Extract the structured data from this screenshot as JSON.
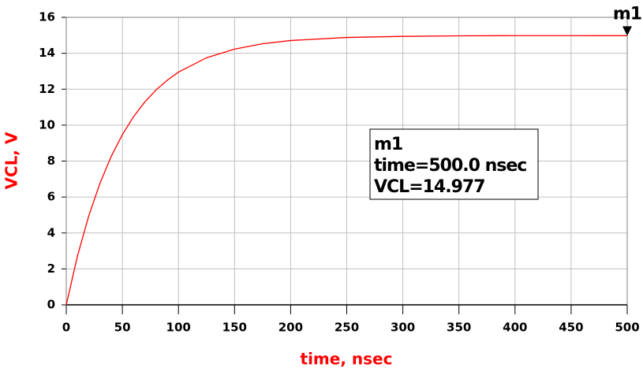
{
  "chart_data": {
    "type": "line",
    "xlabel": "time, nsec",
    "ylabel": "VCL, V",
    "x": [
      0,
      10,
      20,
      30,
      40,
      50,
      60,
      70,
      80,
      90,
      100,
      125,
      150,
      175,
      200,
      250,
      300,
      350,
      400,
      450,
      500
    ],
    "series": [
      {
        "name": "VCL",
        "color": "#ff0000",
        "values": [
          0,
          2.72,
          4.94,
          6.76,
          8.25,
          9.47,
          10.47,
          11.29,
          11.96,
          12.5,
          12.95,
          13.75,
          14.23,
          14.53,
          14.71,
          14.88,
          14.94,
          14.97,
          14.98,
          14.98,
          14.977
        ]
      }
    ],
    "xlim": [
      0,
      500
    ],
    "xticks": [
      0,
      50,
      100,
      150,
      200,
      250,
      300,
      350,
      400,
      450,
      500
    ],
    "ylim": [
      0,
      16
    ],
    "yticks": [
      0,
      2,
      4,
      6,
      8,
      10,
      12,
      14,
      16
    ],
    "grid": true,
    "marker": {
      "name": "m1",
      "x": 500,
      "y": 14.977,
      "box_lines": [
        "m1",
        "time=500.0 nsec",
        "VCL=14.977"
      ]
    }
  }
}
